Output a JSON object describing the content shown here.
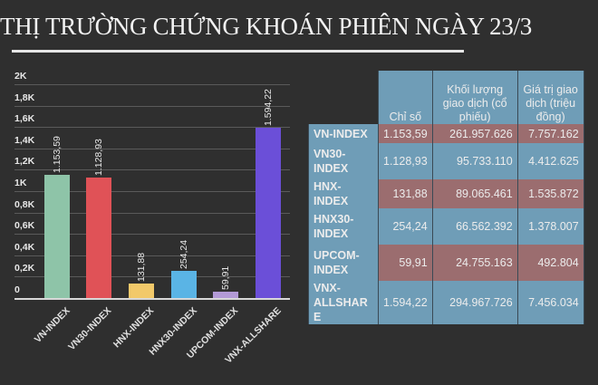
{
  "title": "THỊ TRƯỜNG CHỨNG KHOÁN PHIÊN NGÀY 23/3",
  "chart_data": {
    "type": "bar",
    "title": "",
    "categories": [
      "VN-INDEX",
      "VN30-INDEX",
      "HNX-INDEX",
      "HNX30-INDEX",
      "UPCOM-INDEX",
      "VNX-ALLSHARE"
    ],
    "values": [
      1153.59,
      1128.93,
      131.88,
      254.24,
      59.91,
      1594.22
    ],
    "value_labels": [
      "1.153,59",
      "1.128,93",
      "131,88",
      "254,24",
      "59,91",
      "1.594,22"
    ],
    "colors": [
      "#8ec4a8",
      "#e05257",
      "#f2c96a",
      "#5ab4e5",
      "#b39ad6",
      "#6b4fd8"
    ],
    "yticks": [
      "0",
      "0,2K",
      "0,4K",
      "0,6K",
      "0,8K",
      "1K",
      "1,2K",
      "1,4K",
      "1,6K",
      "1,8K",
      "2K"
    ],
    "ylim": [
      0,
      2000
    ],
    "xlabel": "",
    "ylabel": "",
    "grid": true,
    "legend": "none"
  },
  "table": {
    "headers": [
      "",
      "Chỉ số",
      "Khối lượng giao dịch (cổ phiếu)",
      "Giá trị giao dịch (triệu đồng)"
    ],
    "rows": [
      {
        "name": "VN-INDEX",
        "index": "1.153,59",
        "volume": "261.957.626",
        "value": "7.757.162"
      },
      {
        "name": "VN30-INDEX",
        "index": "1.128,93",
        "volume": "95.733.110",
        "value": "4.412.625"
      },
      {
        "name": "HNX-INDEX",
        "index": "131,88",
        "volume": "89.065.461",
        "value": "1.535.872"
      },
      {
        "name": "HNX30-INDEX",
        "index": "254,24",
        "volume": "66.562.392",
        "value": "1.378.007"
      },
      {
        "name": "UPCOM-INDEX",
        "index": "59,91",
        "volume": "24.755.163",
        "value": "492.804"
      },
      {
        "name": "VNX-ALLSHARE",
        "index": "1.594,22",
        "volume": "294.967.726",
        "value": "7.456.034"
      }
    ]
  }
}
